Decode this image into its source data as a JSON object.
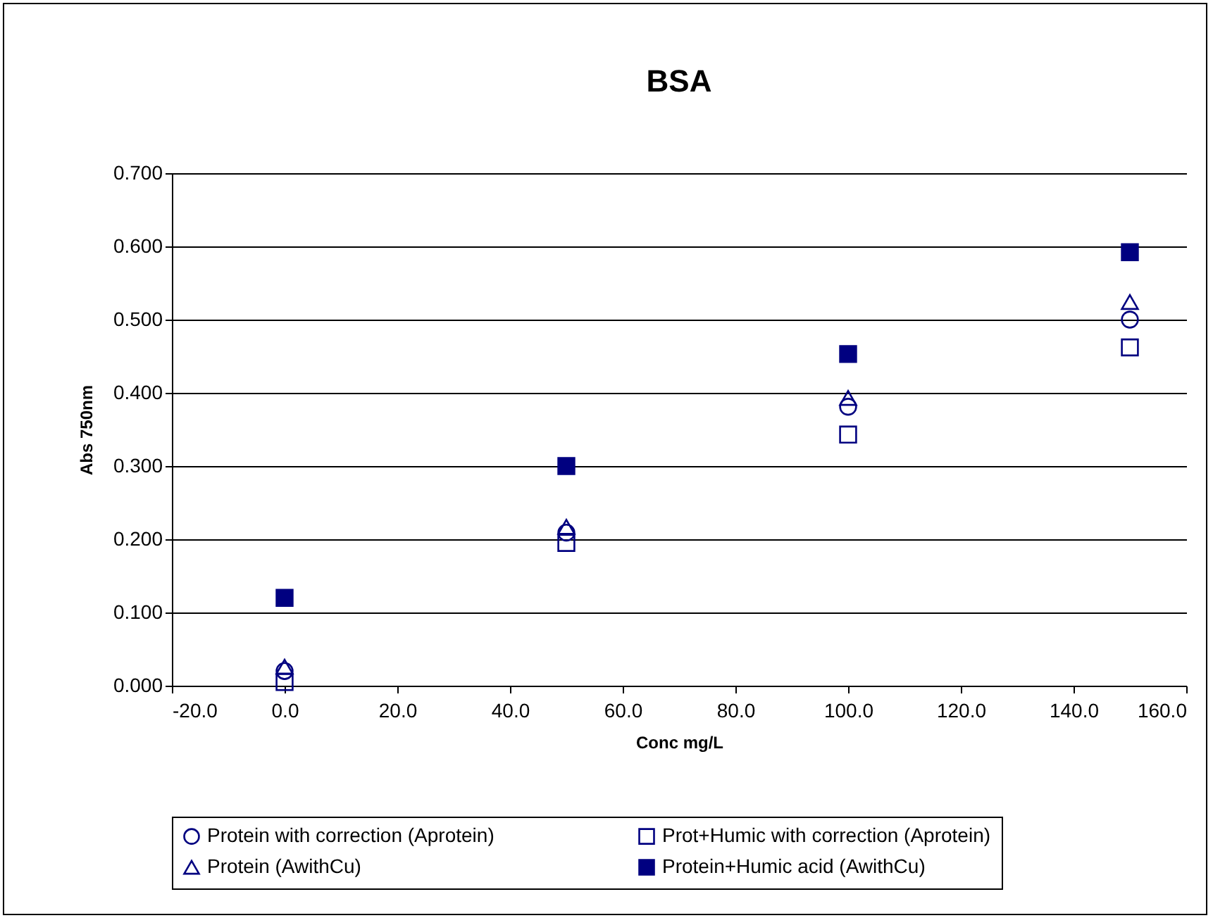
{
  "chart_data": {
    "type": "scatter",
    "title": "BSA",
    "xlabel": "Conc mg/L",
    "ylabel": "Abs 750nm",
    "x": [
      0,
      50,
      100,
      150
    ],
    "series": [
      {
        "name": "Protein with correction (Aprotein)",
        "color": "#000080",
        "marker": "circle",
        "values": [
          0.02,
          0.209,
          0.381,
          0.5
        ]
      },
      {
        "name": "Protein (AwithCu)",
        "color": "#000080",
        "marker": "triangle",
        "values": [
          0.026,
          0.217,
          0.393,
          0.524
        ]
      },
      {
        "name": "Prot+Humic with correction (Aprotein)",
        "color": "#000080",
        "marker": "square",
        "values": [
          0.005,
          0.195,
          0.343,
          0.462
        ]
      },
      {
        "name": "Protein+Humic acid (AwithCu)",
        "color": "#000080",
        "marker": "square-filled",
        "values": [
          0.12,
          0.3,
          0.453,
          0.592
        ]
      }
    ],
    "xlim": [
      -20,
      160
    ],
    "xticks": [
      {
        "value": -20,
        "label": "-20.0"
      },
      {
        "value": 0,
        "label": "0.0"
      },
      {
        "value": 20,
        "label": "20.0"
      },
      {
        "value": 40,
        "label": "40.0"
      },
      {
        "value": 60,
        "label": "60.0"
      },
      {
        "value": 80,
        "label": "80.0"
      },
      {
        "value": 100,
        "label": "100.0"
      },
      {
        "value": 120,
        "label": "120.0"
      },
      {
        "value": 140,
        "label": "140.0"
      },
      {
        "value": 160,
        "label": "160.0"
      }
    ],
    "ylim": [
      0,
      0.7
    ],
    "yticks": [
      {
        "value": 0,
        "label": "0.000"
      },
      {
        "value": 0.1,
        "label": "0.100"
      },
      {
        "value": 0.2,
        "label": "0.200"
      },
      {
        "value": 0.3,
        "label": "0.300"
      },
      {
        "value": 0.4,
        "label": "0.400"
      },
      {
        "value": 0.5,
        "label": "0.500"
      },
      {
        "value": 0.6,
        "label": "0.600"
      },
      {
        "value": 0.7,
        "label": "0.700"
      }
    ],
    "grid": "y",
    "legend": "bottom"
  }
}
